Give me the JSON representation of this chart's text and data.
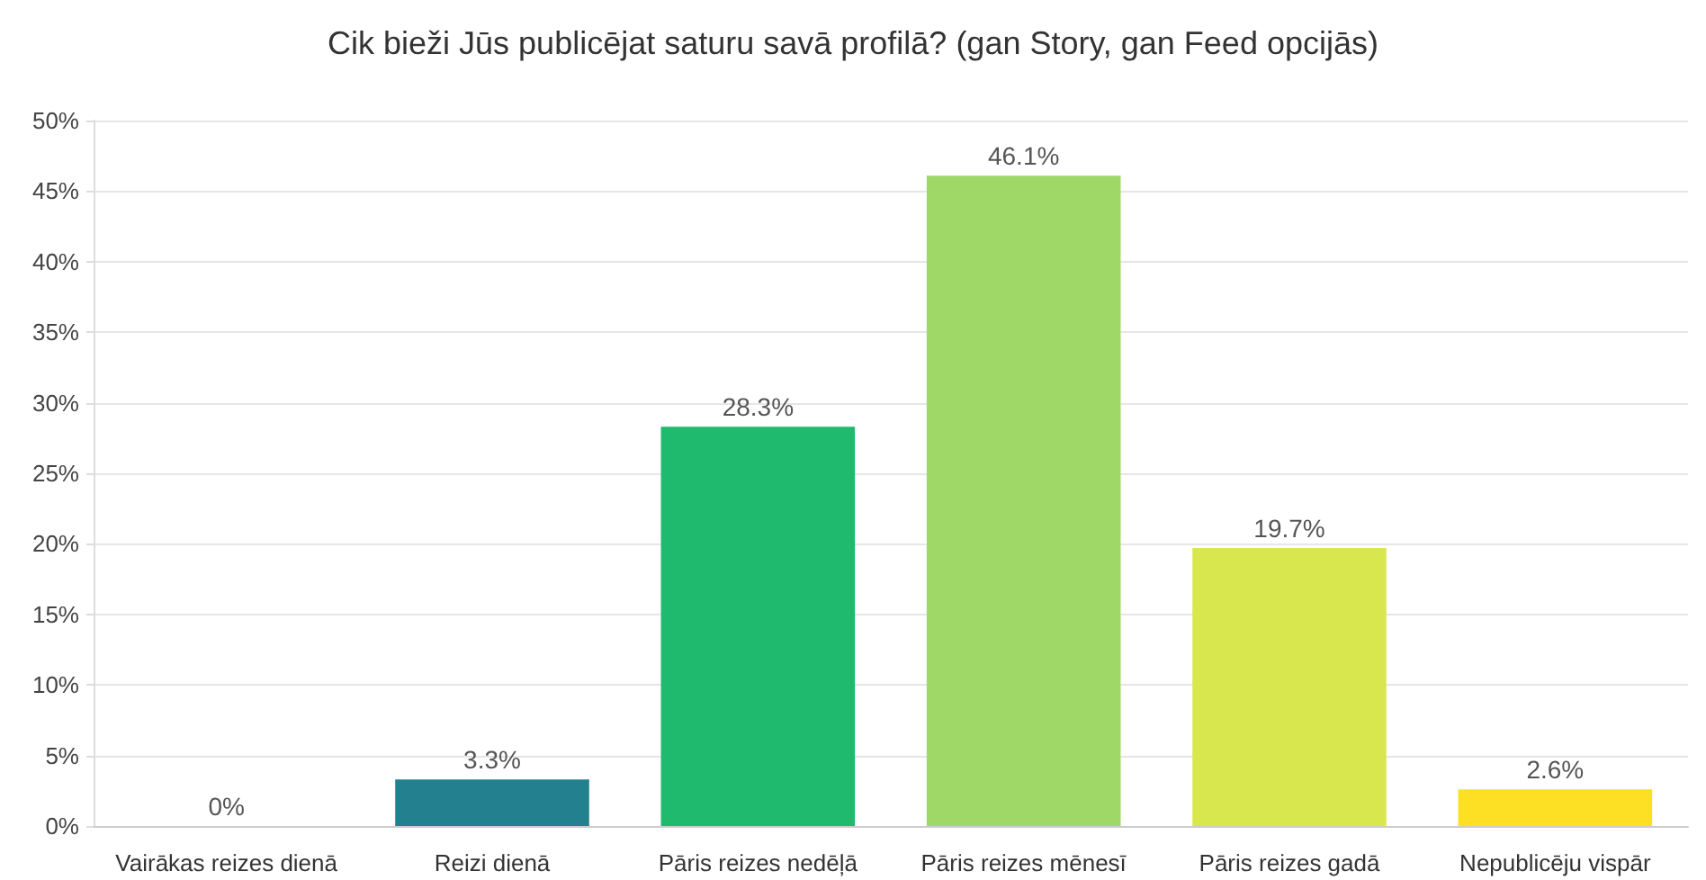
{
  "chart_data": {
    "type": "bar",
    "title": "Cik bieži Jūs publicējat saturu savā profilā? (gan Story, gan Feed opcijās)",
    "categories": [
      "Vairākas reizes dienā",
      "Reizi dienā",
      "Pāris reizes nedēļā",
      "Pāris reizes mēnesī",
      "Pāris reizes gadā",
      "Nepublicēju vispār"
    ],
    "values": [
      0,
      3.3,
      28.3,
      46.1,
      19.7,
      2.6
    ],
    "value_labels": [
      "0%",
      "3.3%",
      "28.3%",
      "46.1%",
      "19.7%",
      "2.6%"
    ],
    "colors": [
      "#2f6eaa",
      "#23818f",
      "#1fba6e",
      "#9fd867",
      "#d9e74f",
      "#fde024"
    ],
    "ylim": [
      0,
      50
    ],
    "yticks": [
      {
        "value": 0,
        "label": "0%"
      },
      {
        "value": 5,
        "label": "5%"
      },
      {
        "value": 10,
        "label": "10%"
      },
      {
        "value": 15,
        "label": "15%"
      },
      {
        "value": 20,
        "label": "20%"
      },
      {
        "value": 25,
        "label": "25%"
      },
      {
        "value": 30,
        "label": "30%"
      },
      {
        "value": 35,
        "label": "35%"
      },
      {
        "value": 40,
        "label": "40%"
      },
      {
        "value": 45,
        "label": "45%"
      },
      {
        "value": 50,
        "label": "50%"
      }
    ],
    "grid": "y"
  }
}
